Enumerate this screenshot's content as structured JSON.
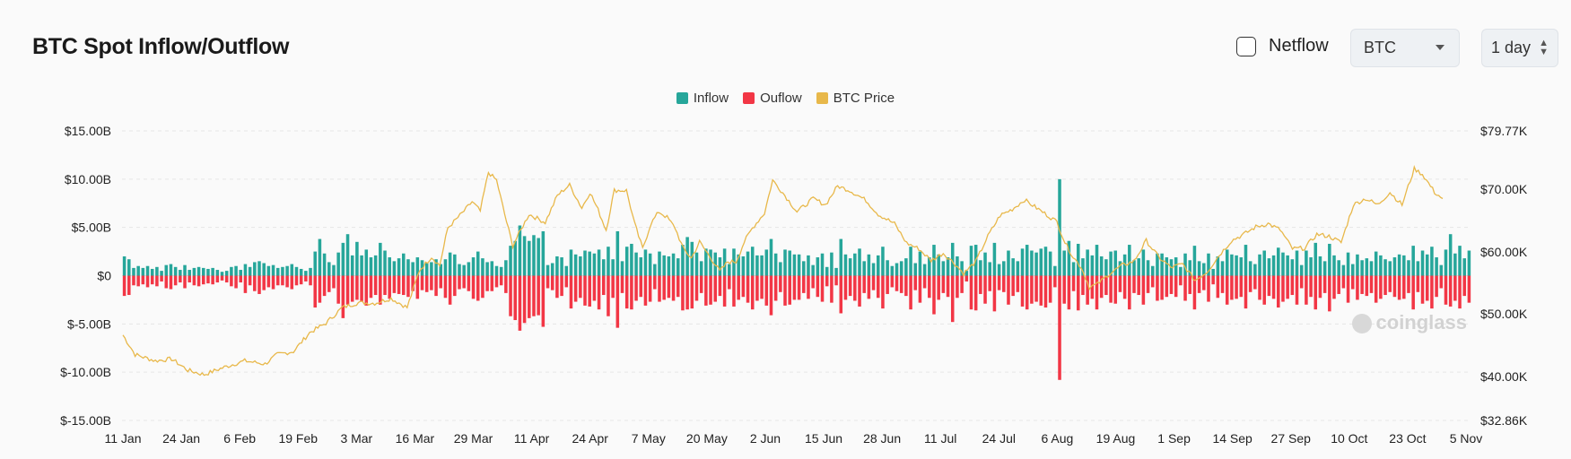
{
  "header": {
    "title": "BTC Spot Inflow/Outflow",
    "netflow_label": "Netflow",
    "coin_select": "BTC",
    "interval_select": "1 day"
  },
  "colors": {
    "inflow": "#26a69a",
    "outflow": "#f23645",
    "price": "#e8b84a"
  },
  "watermark": "coinglass",
  "chart_data": {
    "type": "bar",
    "title": "BTC Spot Inflow/Outflow",
    "legend": [
      "Inflow",
      "Ouflow",
      "BTC Price"
    ],
    "legend_position": "top-center",
    "x_tick_labels": [
      "11 Jan",
      "24 Jan",
      "6 Feb",
      "19 Feb",
      "3 Mar",
      "16 Mar",
      "29 Mar",
      "11 Apr",
      "24 Apr",
      "7 May",
      "20 May",
      "2 Jun",
      "15 Jun",
      "28 Jun",
      "11 Jul",
      "24 Jul",
      "6 Aug",
      "19 Aug",
      "1 Sep",
      "14 Sep",
      "27 Sep",
      "10 Oct",
      "23 Oct",
      "5 Nov"
    ],
    "y_left_ticks": [
      "$15.00B",
      "$10.00B",
      "$5.00B",
      "$0",
      "$-5.00B",
      "$-10.00B",
      "$-15.00B"
    ],
    "y_left_range_billion": [
      -15,
      15
    ],
    "y_right_ticks": [
      "$79.77K",
      "$70.00K",
      "$60.00K",
      "$50.00K",
      "$40.00K",
      "$32.86K"
    ],
    "y_right_range": [
      32860,
      79770
    ],
    "grid": "horizontal-dashed",
    "inflow_billion": [
      2.0,
      1.7,
      0.8,
      1.0,
      0.8,
      1.0,
      0.7,
      0.9,
      0.5,
      1.1,
      1.2,
      0.9,
      0.6,
      1.1,
      0.6,
      0.8,
      0.9,
      0.8,
      0.7,
      0.8,
      0.6,
      0.4,
      0.5,
      0.9,
      1.0,
      0.6,
      1.2,
      0.9,
      1.4,
      1.5,
      1.3,
      1.0,
      1.1,
      0.8,
      0.9,
      1.0,
      1.2,
      0.9,
      0.7,
      0.5,
      0.8,
      2.5,
      3.8,
      2.3,
      1.4,
      1.1,
      2.4,
      3.4,
      4.3,
      2.1,
      3.5,
      2.1,
      2.7,
      1.9,
      2.1,
      3.4,
      2.6,
      1.9,
      1.5,
      1.8,
      2.3,
      1.7,
      1.4,
      1.9,
      1.6,
      1.3,
      1.4,
      1.7,
      1.2,
      1.7,
      2.4,
      2.2,
      1.2,
      1.1,
      1.4,
      1.9,
      2.5,
      1.8,
      1.4,
      1.5,
      1.0,
      0.9,
      1.6,
      3.1,
      3.6,
      5.2,
      4.1,
      3.6,
      4.2,
      3.9,
      4.6,
      1.1,
      1.3,
      2.0,
      1.9,
      1.0,
      2.7,
      2.2,
      2.0,
      2.6,
      2.5,
      2.3,
      2.7,
      1.7,
      3.0,
      1.7,
      4.6,
      1.5,
      3.0,
      3.3,
      2.4,
      1.9,
      2.7,
      2.3,
      1.2,
      2.5,
      2.1,
      2.0,
      2.3,
      1.8,
      3.2,
      4.0,
      3.5,
      2.4,
      1.5,
      2.8,
      2.7,
      2.4,
      1.9,
      2.8,
      1.2,
      2.8,
      2.2,
      2.0,
      2.5,
      3.0,
      2.1,
      2.1,
      2.7,
      3.8,
      2.3,
      1.4,
      2.7,
      2.6,
      2.2,
      2.2,
      1.5,
      2.1,
      1.1,
      1.9,
      2.3,
      0.9,
      2.4,
      0.8,
      3.8,
      2.2,
      1.8,
      2.3,
      2.8,
      1.5,
      2.2,
      1.3,
      2.1,
      3.0,
      1.6,
      1.0,
      1.3,
      1.5,
      1.8,
      3.0,
      1.3,
      2.5,
      1.2,
      1.9,
      3.2,
      2.2,
      1.5,
      1.9,
      3.4,
      2.0,
      1.5,
      0.5,
      3.1,
      3.2,
      1.6,
      2.4,
      1.4,
      3.4,
      1.2,
      1.5,
      2.6,
      1.8,
      1.5,
      2.8,
      3.2,
      2.6,
      2.4,
      2.8,
      3.0,
      2.5,
      1.0,
      10.0,
      2.6,
      3.6,
      1.4,
      3.3,
      1.8,
      2.7,
      2.1,
      3.2,
      2.0,
      1.7,
      2.5,
      2.6,
      1.5,
      2.2,
      3.2,
      1.6,
      1.8,
      2.7,
      1.6,
      1.0,
      2.3,
      2.3,
      1.9,
      1.7,
      1.9,
      0.9,
      2.3,
      1.6,
      3.1,
      1.5,
      1.3,
      2.3,
      0.7,
      2.0,
      1.5,
      2.7,
      2.2,
      2.1,
      1.9,
      3.2,
      1.5,
      1.2,
      2.2,
      2.6,
      1.8,
      2.1,
      2.9,
      2.4,
      2.1,
      1.7,
      2.6,
      1.1,
      2.6,
      1.9,
      3.4,
      2.0,
      1.5,
      3.3,
      2.1,
      1.6,
      1.1,
      2.4,
      1.2,
      2.2,
      1.6,
      1.8,
      1.5,
      2.5,
      2.1,
      1.7,
      1.5,
      1.9,
      2.2,
      2.1,
      1.6,
      3.1,
      1.5,
      2.6,
      2.2,
      3.0,
      1.9,
      1.1,
      2.7,
      4.3,
      2.3,
      3.1,
      1.8,
      2.6
    ],
    "outflow_billion": [
      2.1,
      2.0,
      1.0,
      1.1,
      0.9,
      1.2,
      0.9,
      1.1,
      0.6,
      1.3,
      1.4,
      1.0,
      0.7,
      1.3,
      0.7,
      1.0,
      1.1,
      0.9,
      0.8,
      0.9,
      0.7,
      0.5,
      0.7,
      1.1,
      1.3,
      0.7,
      1.8,
      1.0,
      1.6,
      1.9,
      1.5,
      1.2,
      1.4,
      1.0,
      1.0,
      1.2,
      1.4,
      1.0,
      0.9,
      0.6,
      1.0,
      3.3,
      2.8,
      2.1,
      1.7,
      1.3,
      2.9,
      4.4,
      3.0,
      2.7,
      2.5,
      2.7,
      3.1,
      2.3,
      2.0,
      3.0,
      2.0,
      2.4,
      1.8,
      1.9,
      2.0,
      2.2,
      1.6,
      2.4,
      1.5,
      1.7,
      1.5,
      2.1,
      1.3,
      2.3,
      3.0,
      2.1,
      1.4,
      1.3,
      1.6,
      2.4,
      2.6,
      2.3,
      1.6,
      1.6,
      1.2,
      1.0,
      1.8,
      4.2,
      4.6,
      5.7,
      4.9,
      4.4,
      4.2,
      4.1,
      5.3,
      1.3,
      1.5,
      2.3,
      2.1,
      1.2,
      3.4,
      2.7,
      2.3,
      3.1,
      3.2,
      2.6,
      3.5,
      2.0,
      4.2,
      2.3,
      5.4,
      1.8,
      3.4,
      3.5,
      2.6,
      2.2,
      3.1,
      2.7,
      1.4,
      2.7,
      2.5,
      2.3,
      2.6,
      2.2,
      3.6,
      3.5,
      3.4,
      2.6,
      1.8,
      3.1,
      3.0,
      2.7,
      2.1,
      3.2,
      1.4,
      3.2,
      2.5,
      2.2,
      2.8,
      3.5,
      2.6,
      2.4,
      3.1,
      4.1,
      2.6,
      1.7,
      3.1,
      3.0,
      2.5,
      2.5,
      1.8,
      2.4,
      1.3,
      2.2,
      2.7,
      1.1,
      2.8,
      1.0,
      3.9,
      2.5,
      2.1,
      2.6,
      3.2,
      1.8,
      2.4,
      1.5,
      2.3,
      3.4,
      1.9,
      1.2,
      1.6,
      1.8,
      2.1,
      3.5,
      1.5,
      2.8,
      1.3,
      2.3,
      4.0,
      2.5,
      1.8,
      2.2,
      4.8,
      2.3,
      1.8,
      0.6,
      3.5,
      3.6,
      1.9,
      2.9,
      1.6,
      3.7,
      1.5,
      1.7,
      3.0,
      2.1,
      1.7,
      3.2,
      3.5,
      2.9,
      2.7,
      3.1,
      3.3,
      2.8,
      1.2,
      10.8,
      2.9,
      3.5,
      1.6,
      3.6,
      2.0,
      3.0,
      2.4,
      3.5,
      2.3,
      2.0,
      2.8,
      2.9,
      1.7,
      2.4,
      3.5,
      1.8,
      2.0,
      3.0,
      1.8,
      1.2,
      2.6,
      2.5,
      2.2,
      1.9,
      2.2,
      1.0,
      2.6,
      1.9,
      3.5,
      1.8,
      1.5,
      2.7,
      0.9,
      2.3,
      1.8,
      3.0,
      2.5,
      2.4,
      2.2,
      3.4,
      1.7,
      1.4,
      2.5,
      3.0,
      2.1,
      2.4,
      3.3,
      2.7,
      2.4,
      2.0,
      3.0,
      1.3,
      3.0,
      2.2,
      3.5,
      2.3,
      1.8,
      3.7,
      2.4,
      1.9,
      1.3,
      2.8,
      1.4,
      2.5,
      1.9,
      2.1,
      1.8,
      2.8,
      2.4,
      2.0,
      1.7,
      2.2,
      2.5,
      2.4,
      1.8,
      3.5,
      1.7,
      2.9,
      2.6,
      3.4,
      2.2,
      1.3,
      3.0,
      3.2,
      2.6,
      3.4,
      2.1,
      2.8
    ],
    "price_keypoints": [
      [
        0,
        46600
      ],
      [
        3,
        43500
      ],
      [
        8,
        42500
      ],
      [
        12,
        42800
      ],
      [
        16,
        41000
      ],
      [
        20,
        40300
      ],
      [
        25,
        41500
      ],
      [
        30,
        42500
      ],
      [
        35,
        42000
      ],
      [
        38,
        43500
      ],
      [
        42,
        44000
      ],
      [
        46,
        47000
      ],
      [
        50,
        48500
      ],
      [
        54,
        51000
      ],
      [
        58,
        51800
      ],
      [
        62,
        51700
      ],
      [
        66,
        52500
      ],
      [
        70,
        51000
      ],
      [
        73,
        57000
      ],
      [
        76,
        59200
      ],
      [
        78,
        57800
      ],
      [
        80,
        63800
      ],
      [
        84,
        66500
      ],
      [
        86,
        68000
      ],
      [
        88,
        66500
      ],
      [
        90,
        72800
      ],
      [
        92,
        71500
      ],
      [
        94,
        66000
      ],
      [
        96,
        61000
      ],
      [
        100,
        66000
      ],
      [
        104,
        64700
      ],
      [
        107,
        69000
      ],
      [
        110,
        70700
      ],
      [
        113,
        67000
      ],
      [
        115,
        69500
      ],
      [
        117,
        66700
      ],
      [
        119,
        63500
      ],
      [
        121,
        69800
      ],
      [
        124,
        69800
      ],
      [
        126,
        64500
      ],
      [
        128,
        60500
      ],
      [
        130,
        64500
      ],
      [
        132,
        66400
      ],
      [
        134,
        65500
      ],
      [
        136,
        63800
      ],
      [
        138,
        60500
      ],
      [
        140,
        59000
      ],
      [
        142,
        61600
      ],
      [
        145,
        58800
      ],
      [
        147,
        56900
      ],
      [
        149,
        58400
      ],
      [
        151,
        58400
      ],
      [
        153,
        61600
      ],
      [
        155,
        63800
      ],
      [
        158,
        66200
      ],
      [
        160,
        71500
      ],
      [
        163,
        69000
      ],
      [
        166,
        66400
      ],
      [
        170,
        68500
      ],
      [
        173,
        67500
      ],
      [
        176,
        70500
      ],
      [
        179,
        69800
      ],
      [
        183,
        68200
      ],
      [
        186,
        66000
      ],
      [
        190,
        64500
      ],
      [
        193,
        61400
      ],
      [
        196,
        60500
      ],
      [
        199,
        58600
      ],
      [
        202,
        59800
      ],
      [
        205,
        58000
      ],
      [
        207,
        56500
      ],
      [
        210,
        58400
      ],
      [
        213,
        62500
      ],
      [
        216,
        65800
      ],
      [
        219,
        66800
      ],
      [
        222,
        68300
      ],
      [
        225,
        67000
      ],
      [
        228,
        65700
      ],
      [
        230,
        64800
      ],
      [
        232,
        61500
      ],
      [
        234,
        59200
      ],
      [
        236,
        57500
      ],
      [
        238,
        54300
      ],
      [
        240,
        54800
      ],
      [
        243,
        56500
      ],
      [
        246,
        57800
      ],
      [
        249,
        58500
      ],
      [
        252,
        61800
      ],
      [
        255,
        59200
      ],
      [
        258,
        57500
      ],
      [
        261,
        58000
      ],
      [
        264,
        55400
      ],
      [
        267,
        56800
      ],
      [
        270,
        59500
      ],
      [
        273,
        61800
      ],
      [
        276,
        62800
      ],
      [
        279,
        64000
      ],
      [
        282,
        64500
      ],
      [
        285,
        63500
      ],
      [
        288,
        60500
      ],
      [
        291,
        60600
      ],
      [
        294,
        62800
      ],
      [
        297,
        62500
      ],
      [
        300,
        61500
      ],
      [
        303,
        67500
      ],
      [
        306,
        68500
      ],
      [
        309,
        67500
      ],
      [
        312,
        69500
      ],
      [
        315,
        67500
      ],
      [
        318,
        73400
      ],
      [
        320,
        72500
      ],
      [
        323,
        69500
      ],
      [
        325,
        68500
      ]
    ]
  }
}
